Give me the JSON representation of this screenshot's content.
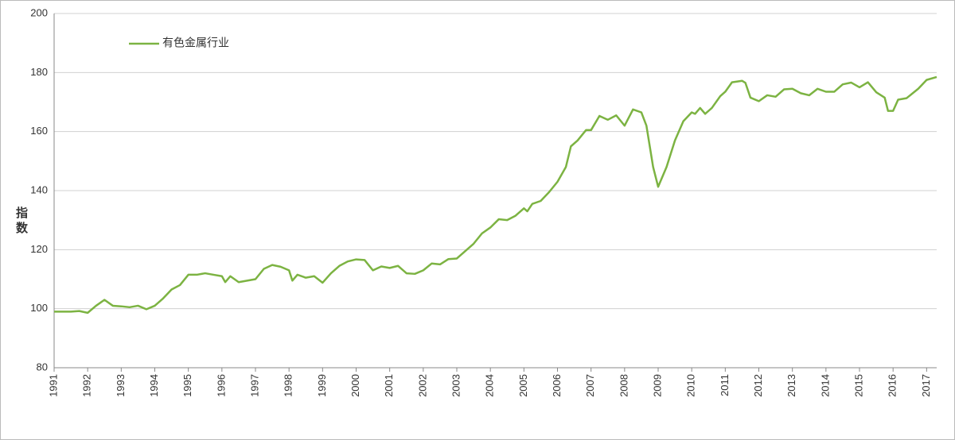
{
  "chart_data": {
    "type": "line",
    "ylabel": "指数",
    "x": [
      1991.0,
      1991.25,
      1991.5,
      1991.75,
      1992.0,
      1992.25,
      1992.5,
      1992.75,
      1993.0,
      1993.25,
      1993.5,
      1993.75,
      1994.0,
      1994.25,
      1994.5,
      1994.75,
      1995.0,
      1995.25,
      1995.5,
      1995.75,
      1996.0,
      1996.1,
      1996.25,
      1996.5,
      1996.75,
      1997.0,
      1997.25,
      1997.5,
      1997.75,
      1998.0,
      1998.1,
      1998.25,
      1998.5,
      1998.75,
      1999.0,
      1999.25,
      1999.5,
      1999.75,
      2000.0,
      2000.25,
      2000.5,
      2000.75,
      2001.0,
      2001.25,
      2001.5,
      2001.75,
      2002.0,
      2002.25,
      2002.5,
      2002.75,
      2003.0,
      2003.25,
      2003.5,
      2003.75,
      2004.0,
      2004.25,
      2004.5,
      2004.75,
      2005.0,
      2005.1,
      2005.25,
      2005.5,
      2005.75,
      2006.0,
      2006.25,
      2006.4,
      2006.6,
      2006.85,
      2007.0,
      2007.25,
      2007.5,
      2007.75,
      2008.0,
      2008.25,
      2008.5,
      2008.65,
      2008.85,
      2009.0,
      2009.25,
      2009.5,
      2009.75,
      2010.0,
      2010.1,
      2010.25,
      2010.4,
      2010.6,
      2010.85,
      2011.0,
      2011.2,
      2011.5,
      2011.6,
      2011.75,
      2012.0,
      2012.25,
      2012.5,
      2012.75,
      2013.0,
      2013.25,
      2013.5,
      2013.75,
      2014.0,
      2014.25,
      2014.5,
      2014.75,
      2015.0,
      2015.25,
      2015.5,
      2015.75,
      2015.85,
      2016.0,
      2016.15,
      2016.4,
      2016.75,
      2017.0,
      2017.3
    ],
    "series": [
      {
        "name": "有色金属行业",
        "color": "#7cb342",
        "values": [
          99,
          99,
          99,
          99.2,
          98.6,
          101,
          103,
          101,
          100.8,
          100.5,
          101,
          99.8,
          101,
          103.5,
          106.5,
          108,
          111.5,
          111.5,
          112,
          111.5,
          111,
          109,
          111,
          109,
          109.5,
          110,
          113.5,
          114.8,
          114.2,
          113,
          109.5,
          111.5,
          110.5,
          111,
          108.8,
          112,
          114.5,
          116,
          116.7,
          116.5,
          113,
          114.3,
          113.8,
          114.5,
          112,
          111.8,
          113,
          115.3,
          115,
          116.8,
          117,
          119.5,
          122,
          125.5,
          127.5,
          130.3,
          130,
          131.5,
          134,
          133,
          135.5,
          136.5,
          139.5,
          143,
          148,
          155,
          157,
          160.5,
          160.5,
          165.3,
          164,
          165.5,
          162,
          167.5,
          166.5,
          162,
          148,
          141.3,
          148,
          157,
          163.5,
          166.5,
          166,
          168,
          166,
          168,
          172,
          173.5,
          176.7,
          177.2,
          176.5,
          171.5,
          170.3,
          172.3,
          171.8,
          174.3,
          174.5,
          173,
          172.3,
          174.5,
          173.5,
          173.5,
          176,
          176.6,
          175,
          176.7,
          173.3,
          171.5,
          167,
          167,
          170.8,
          171.3,
          174.5,
          177.5,
          178.5
        ]
      }
    ],
    "xlim": [
      1991,
      2017.3
    ],
    "ylim": [
      80,
      200
    ],
    "xticks": [
      1991,
      1992,
      1993,
      1994,
      1995,
      1996,
      1997,
      1998,
      1999,
      2000,
      2001,
      2002,
      2003,
      2004,
      2005,
      2006,
      2007,
      2008,
      2009,
      2010,
      2011,
      2012,
      2013,
      2014,
      2015,
      2016,
      2017
    ],
    "yticks": [
      80,
      100,
      120,
      140,
      160,
      180,
      200
    ],
    "grid": true,
    "legend": "upper left"
  }
}
